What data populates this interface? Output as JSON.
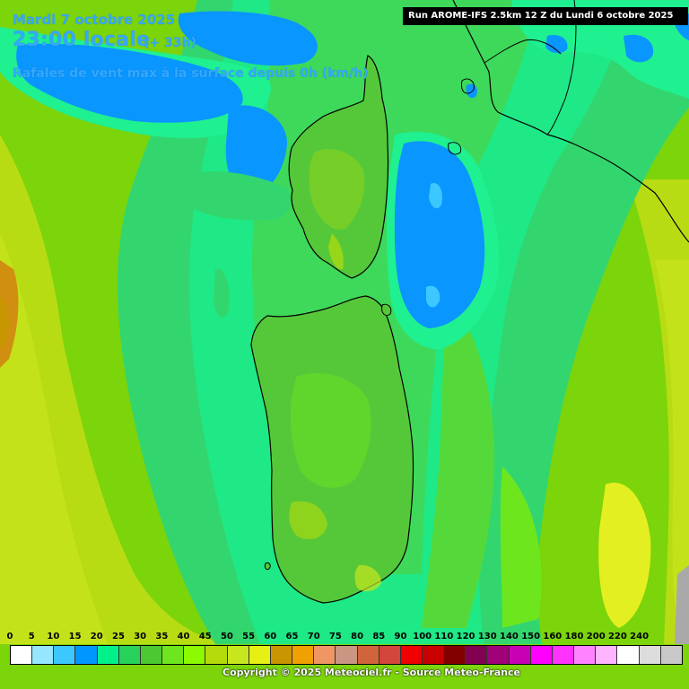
{
  "header": {
    "date": "Mardi 7 octobre 2025",
    "time": "23:00 locale",
    "offset": "(+ 33h)",
    "parameter": "Rafales de vent max à la surface depuis 0h (km/h)",
    "run": "Run AROME-IFS 2.5km 12 Z du Lundi 6 octobre 2025"
  },
  "legend": {
    "ticks": [
      "0",
      "5",
      "10",
      "15",
      "20",
      "25",
      "30",
      "35",
      "40",
      "45",
      "50",
      "55",
      "60",
      "65",
      "70",
      "75",
      "80",
      "85",
      "90",
      "100",
      "110",
      "120",
      "130",
      "140",
      "150",
      "160",
      "180",
      "200",
      "220",
      "240"
    ],
    "colors": [
      "#ffffff",
      "#96e6ff",
      "#3cc8ff",
      "#0096ff",
      "#00f08c",
      "#28d25a",
      "#4bc832",
      "#6ee61e",
      "#8cfa00",
      "#b4dc0a",
      "#c8e61e",
      "#e6f014",
      "#c89600",
      "#f0a000",
      "#f09664",
      "#c89682",
      "#d2643c",
      "#d2463c",
      "#f00000",
      "#c80000",
      "#820000",
      "#820050",
      "#a00078",
      "#c800b4",
      "#ff00ff",
      "#ff32ff",
      "#ff82ff",
      "#ffb4ff",
      "#ffffff",
      "#dcdcdc",
      "#c8c8c8"
    ]
  },
  "footer": {
    "copyright": "Copyright © 2025 Meteociel.fr - Source Meteo-France"
  },
  "map_colors": {
    "low_10_15": "#0096ff",
    "band_20": "#00f08c",
    "band_25": "#28d25a",
    "band_30": "#4bc832",
    "band_35": "#6ee61e",
    "band_40": "#8cfa00",
    "band_45": "#b4dc0a",
    "band_50": "#c8e61e",
    "band_60": "#c89600"
  }
}
